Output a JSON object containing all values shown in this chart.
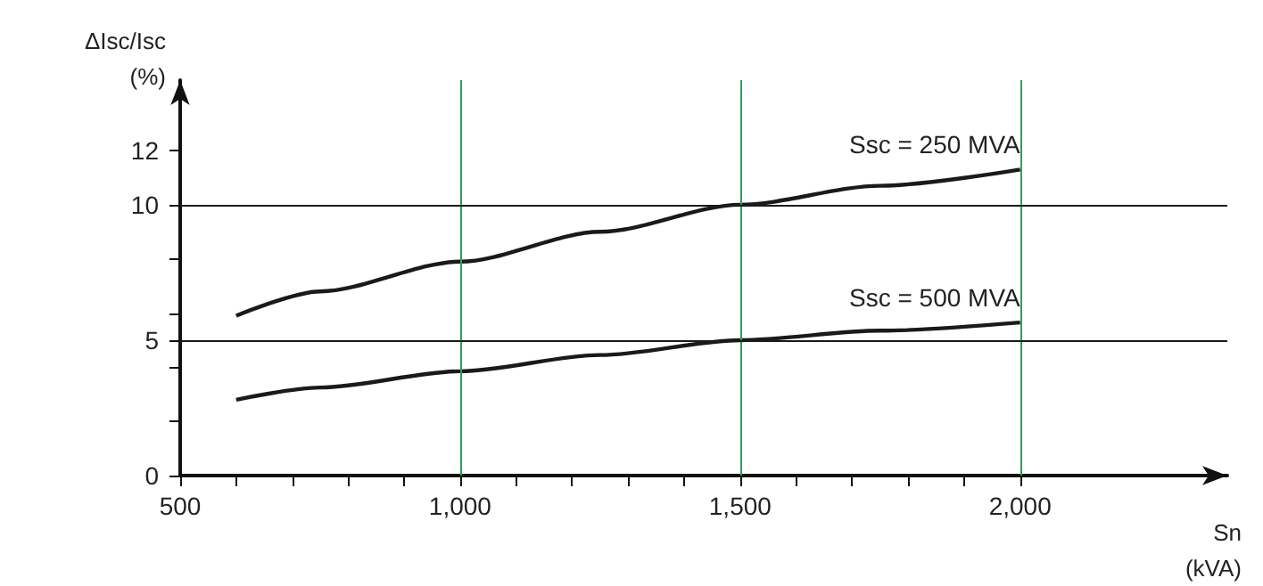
{
  "chart_data": {
    "type": "line",
    "xlabel": "Sn\n(kVA)",
    "ylabel": "ΔIsc/Isc\n(%)",
    "x": [
      600,
      750,
      1000,
      1250,
      1500,
      1750,
      2000
    ],
    "series": [
      {
        "name": "Ssc = 250 MVA",
        "color": "#1a1a1a",
        "values": [
          5.9,
          6.8,
          7.9,
          9.0,
          10.0,
          10.7,
          11.3
        ]
      },
      {
        "name": "Ssc = 500 MVA",
        "color": "#1a1a1a",
        "values": [
          2.8,
          3.25,
          3.85,
          4.45,
          5.0,
          5.35,
          5.65
        ]
      }
    ],
    "xlim": [
      500,
      2370
    ],
    "xticks": [
      {
        "value": 500,
        "label": "500"
      },
      {
        "value": 600,
        "label": null
      },
      {
        "value": 700,
        "label": null
      },
      {
        "value": 800,
        "label": null
      },
      {
        "value": 900,
        "label": null
      },
      {
        "value": 1000,
        "label": "1,000"
      },
      {
        "value": 1100,
        "label": null
      },
      {
        "value": 1200,
        "label": null
      },
      {
        "value": 1300,
        "label": null
      },
      {
        "value": 1400,
        "label": null
      },
      {
        "value": 1500,
        "label": "1,500"
      },
      {
        "value": 1600,
        "label": null
      },
      {
        "value": 1700,
        "label": null
      },
      {
        "value": 1800,
        "label": null
      },
      {
        "value": 1900,
        "label": null
      },
      {
        "value": 2000,
        "label": "2,000"
      }
    ],
    "ylim": [
      0,
      14.6
    ],
    "yticks": [
      0,
      {
        "value": 2,
        "label": null
      },
      {
        "value": 4,
        "label": null
      },
      5,
      {
        "value": 6,
        "label": null
      },
      {
        "value": 8,
        "label": null
      },
      10,
      12
    ],
    "ref_lines": [
      {
        "axis": "x",
        "value": 1000,
        "color": "#2ca05a"
      },
      {
        "axis": "x",
        "value": 1500,
        "color": "#2ca05a"
      },
      {
        "axis": "x",
        "value": 2000,
        "color": "#2ca05a"
      },
      {
        "axis": "y",
        "value": 5,
        "color": "#1a1a1a"
      },
      {
        "axis": "y",
        "value": 10,
        "color": "#1a1a1a"
      }
    ],
    "grid": false,
    "legend": false,
    "marker": "none",
    "line_style": "solid"
  }
}
